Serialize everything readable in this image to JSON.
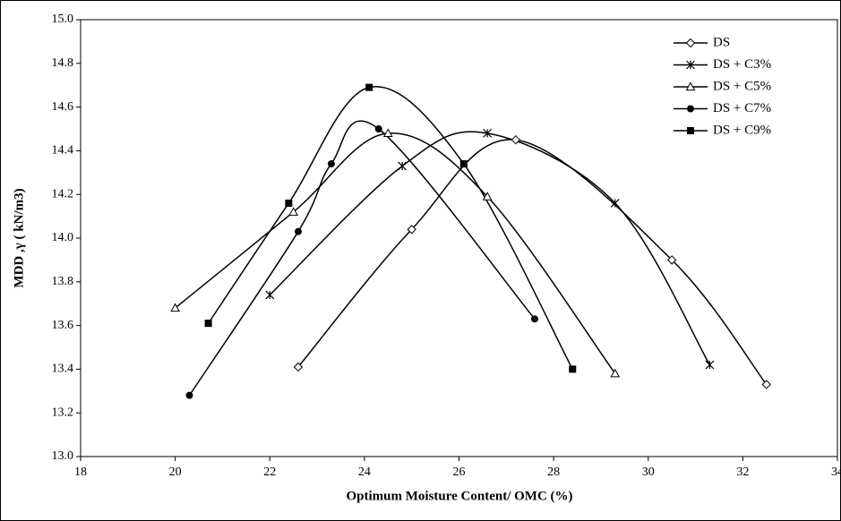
{
  "chart_data": {
    "type": "line",
    "x_label": "Optimum Moisture Content/ OMC (%)",
    "y_label": "MDD ,γ ( kN/m3)",
    "xlim": [
      18,
      34
    ],
    "ylim": [
      13.0,
      15.0
    ],
    "xticks": [
      18,
      20,
      22,
      24,
      26,
      28,
      30,
      32,
      34
    ],
    "yticks": [
      {
        "value": 13.0,
        "label": "13.0"
      },
      {
        "value": 13.2,
        "label": "13.2"
      },
      {
        "value": 13.4,
        "label": "13.4"
      },
      {
        "value": 13.6,
        "label": "13.6"
      },
      {
        "value": 13.8,
        "label": "13.8"
      },
      {
        "value": 14.0,
        "label": "14.0"
      },
      {
        "value": 14.2,
        "label": "14.2"
      },
      {
        "value": 14.4,
        "label": "14.4"
      },
      {
        "value": 14.6,
        "label": "14.6"
      },
      {
        "value": 14.8,
        "label": "14.8"
      },
      {
        "value": 15.0,
        "label": "15.0"
      }
    ],
    "grid": false,
    "legend": "top-right",
    "smooth": true,
    "series": [
      {
        "name": "DS",
        "color": "#000000",
        "marker": "diamond",
        "x": [
          22.6,
          25.0,
          27.2,
          30.5,
          32.5
        ],
        "values": [
          13.41,
          14.04,
          14.45,
          13.9,
          13.33
        ]
      },
      {
        "name": "DS + C3%",
        "color": "#000000",
        "marker": "star",
        "x": [
          22.0,
          24.8,
          26.6,
          29.3,
          31.3
        ],
        "values": [
          13.74,
          14.33,
          14.48,
          14.16,
          13.42
        ]
      },
      {
        "name": "DS + C5%",
        "color": "#000000",
        "marker": "triangle",
        "x": [
          20.0,
          22.5,
          24.5,
          26.6,
          29.3
        ],
        "values": [
          13.68,
          14.12,
          14.48,
          14.19,
          13.38
        ]
      },
      {
        "name": "DS + C7%",
        "color": "#000000",
        "marker": "circle",
        "x": [
          20.3,
          22.6,
          23.3,
          24.3,
          27.6
        ],
        "values": [
          13.28,
          14.03,
          14.34,
          14.5,
          13.63
        ]
      },
      {
        "name": "DS + C9%",
        "color": "#000000",
        "marker": "square",
        "x": [
          20.7,
          22.4,
          24.1,
          26.1,
          28.4
        ],
        "values": [
          13.61,
          14.16,
          14.69,
          14.34,
          13.4
        ]
      }
    ]
  }
}
